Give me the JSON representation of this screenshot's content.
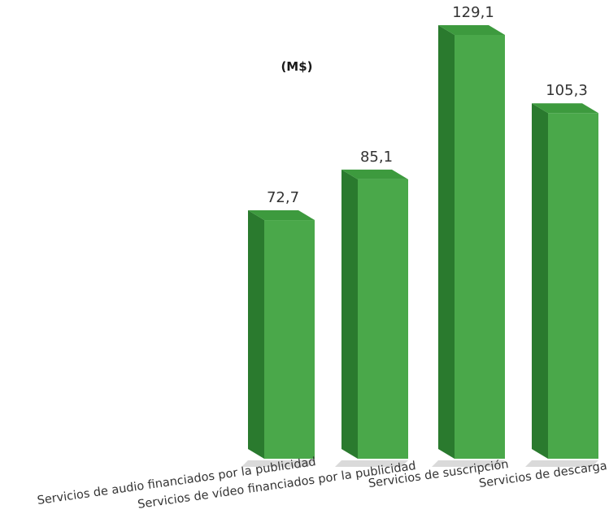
{
  "chart_data": {
    "type": "bar",
    "title": "(M$)",
    "categories": [
      "Servicios de audio financiados por la publicidad",
      "Servicios de vídeo financiados por la publicidad",
      "Servicios de suscripción",
      "Servicios de descarga"
    ],
    "values": [
      72.7,
      85.1,
      129.1,
      105.3
    ],
    "value_labels": [
      "72,7",
      "85,1",
      "129,1",
      "105,3"
    ],
    "xlabel": "",
    "ylabel": "",
    "ylim": [
      0,
      129.1
    ],
    "grid": false,
    "legend": "none",
    "colors": {
      "front": "#4aa84a",
      "side": "#2a7a2e",
      "top": "#3d9a3e",
      "shadow": "#dadada"
    }
  }
}
